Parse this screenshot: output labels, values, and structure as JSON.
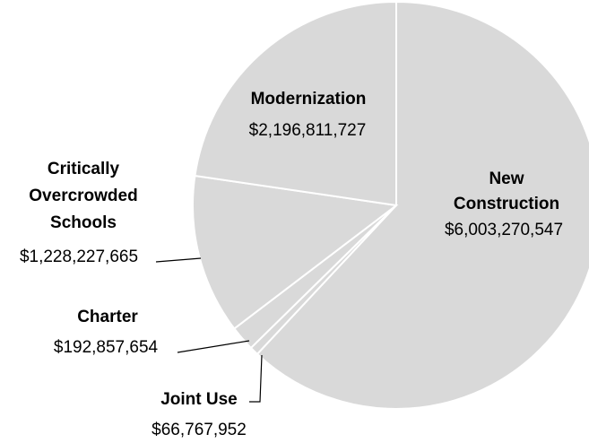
{
  "chart_data": {
    "type": "pie",
    "title": "",
    "colors": {
      "slice_fill": "#d9d9d9",
      "slice_border": "#ffffff",
      "text": "#000000"
    },
    "slices": [
      {
        "label": "New Construction",
        "value": 6003270547,
        "value_label": "$6,003,270,547"
      },
      {
        "label": "Joint Use",
        "value": 66767952,
        "value_label": "$66,767,952"
      },
      {
        "label": "Charter",
        "value": 192857654,
        "value_label": "$192,857,654"
      },
      {
        "label": "Critically Overcrowded Schools",
        "value": 1228227665,
        "value_label": "$1,228,227,665"
      },
      {
        "label": "Modernization",
        "value": 2196811727,
        "value_label": "$2,196,811,727"
      }
    ],
    "legend": "none",
    "start_angle": "12 o'clock",
    "direction": "clockwise"
  }
}
